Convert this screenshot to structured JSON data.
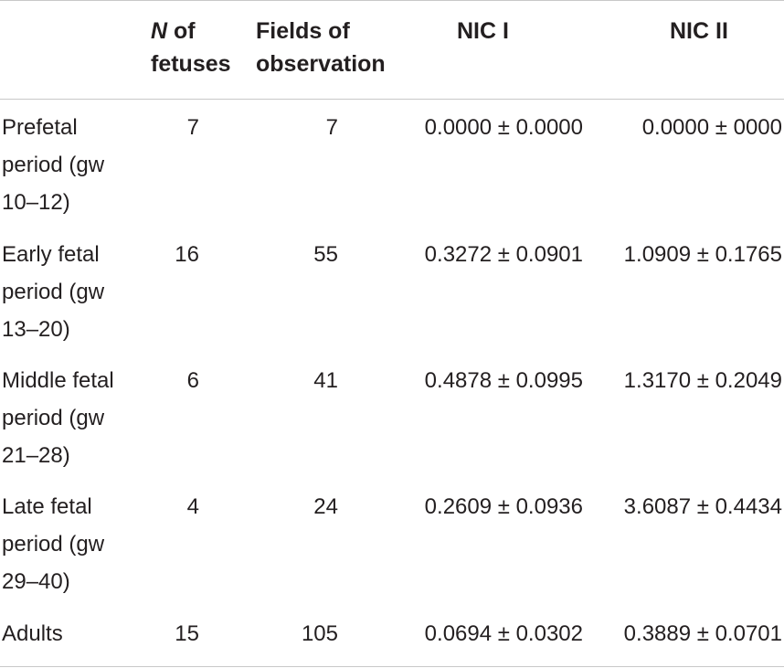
{
  "header": {
    "col_n_italic": "N",
    "col_n_rest": " of",
    "col_n_line2": "fetuses",
    "col_fields_line1": "Fields of",
    "col_fields_line2": "observation",
    "col_nic1": "NIC I",
    "col_nic2": "NIC II"
  },
  "rows": [
    {
      "label": "Prefetal\nperiod (gw\n10–12)",
      "n": "7",
      "fields": "7",
      "nic1": "0.0000 ± 0.0000",
      "nic2": "0.0000 ± 0000"
    },
    {
      "label": "Early fetal\nperiod (gw\n13–20)",
      "n": "16",
      "fields": "55",
      "nic1": "0.3272 ± 0.0901",
      "nic2": "1.0909 ± 0.1765"
    },
    {
      "label": "Middle fetal\nperiod (gw\n21–28)",
      "n": "6",
      "fields": "41",
      "nic1": "0.4878 ± 0.0995",
      "nic2": "1.3170 ± 0.2049"
    },
    {
      "label": "Late fetal\nperiod (gw\n29–40)",
      "n": "4",
      "fields": "24",
      "nic1": "0.2609 ± 0.0936",
      "nic2": "3.6087 ± 0.4434"
    },
    {
      "label": "Adults",
      "n": "15",
      "fields": "105",
      "nic1": "0.0694 ± 0.0302",
      "nic2": "0.3889 ± 0.0701"
    }
  ]
}
